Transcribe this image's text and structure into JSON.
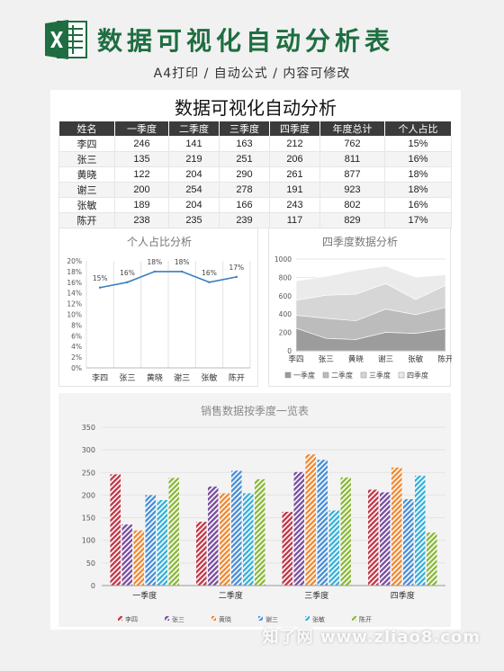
{
  "banner": {
    "title": "数据可视化自动分析表",
    "subtitle": "A4打印 / 自动公式 / 内容可修改"
  },
  "sheet": {
    "title": "数据可视化自动分析",
    "headers": [
      "姓名",
      "一季度",
      "二季度",
      "三季度",
      "四季度",
      "年度总计",
      "个人占比"
    ],
    "rows": [
      [
        "李四",
        "246",
        "141",
        "163",
        "212",
        "762",
        "15%"
      ],
      [
        "张三",
        "135",
        "219",
        "251",
        "206",
        "811",
        "16%"
      ],
      [
        "黄晓",
        "122",
        "204",
        "290",
        "261",
        "877",
        "18%"
      ],
      [
        "谢三",
        "200",
        "254",
        "278",
        "191",
        "923",
        "18%"
      ],
      [
        "张敏",
        "189",
        "204",
        "166",
        "243",
        "802",
        "16%"
      ],
      [
        "陈开",
        "238",
        "235",
        "239",
        "117",
        "829",
        "17%"
      ]
    ]
  },
  "colors": {
    "banner_green": "#1e6e41",
    "line": "#3a7fc0",
    "series": [
      "#c0394a",
      "#7a4fa0",
      "#ef8a34",
      "#4a8fd6",
      "#3ab0d8",
      "#8cb83c"
    ]
  },
  "watermark": "知了网 www.zliao8.com",
  "chart_data": [
    {
      "type": "line",
      "title": "个人占比分析",
      "categories": [
        "李四",
        "张三",
        "黄晓",
        "谢三",
        "张敏",
        "陈开"
      ],
      "values": [
        15,
        16,
        18,
        18,
        16,
        17
      ],
      "data_labels": [
        "15%",
        "16%",
        "18%",
        "18%",
        "16%",
        "17%"
      ],
      "yticks": [
        "0%",
        "2%",
        "4%",
        "6%",
        "8%",
        "10%",
        "12%",
        "14%",
        "16%",
        "18%",
        "20%"
      ],
      "ylim": [
        0,
        20
      ],
      "grid": "vertical"
    },
    {
      "type": "area",
      "title": "四季度数据分析",
      "categories": [
        "李四",
        "张三",
        "黄晓",
        "谢三",
        "张敏",
        "陈开"
      ],
      "series": [
        {
          "name": "一季度",
          "values": [
            246,
            135,
            122,
            200,
            189,
            238
          ]
        },
        {
          "name": "二季度",
          "values": [
            141,
            219,
            204,
            254,
            204,
            235
          ]
        },
        {
          "name": "三季度",
          "values": [
            163,
            251,
            290,
            278,
            166,
            239
          ]
        },
        {
          "name": "四季度",
          "values": [
            212,
            206,
            261,
            191,
            243,
            117
          ]
        }
      ],
      "stacked": true,
      "yticks": [
        "0",
        "200",
        "400",
        "600",
        "800",
        "1000"
      ],
      "ylim": [
        0,
        1000
      ],
      "legend": "bottom"
    },
    {
      "type": "bar",
      "title": "销售数据按季度一览表",
      "categories": [
        "一季度",
        "二季度",
        "三季度",
        "四季度"
      ],
      "series": [
        {
          "name": "李四",
          "values": [
            246,
            141,
            163,
            212
          ]
        },
        {
          "name": "张三",
          "values": [
            135,
            219,
            251,
            206
          ]
        },
        {
          "name": "黄晓",
          "values": [
            122,
            204,
            290,
            261
          ]
        },
        {
          "name": "谢三",
          "values": [
            200,
            254,
            278,
            191
          ]
        },
        {
          "name": "张敏",
          "values": [
            189,
            204,
            166,
            243
          ]
        },
        {
          "name": "陈开",
          "values": [
            238,
            235,
            239,
            117
          ]
        }
      ],
      "yticks": [
        "0",
        "50",
        "100",
        "150",
        "200",
        "250",
        "300",
        "350"
      ],
      "ylim": [
        0,
        350
      ],
      "legend": "bottom"
    }
  ]
}
